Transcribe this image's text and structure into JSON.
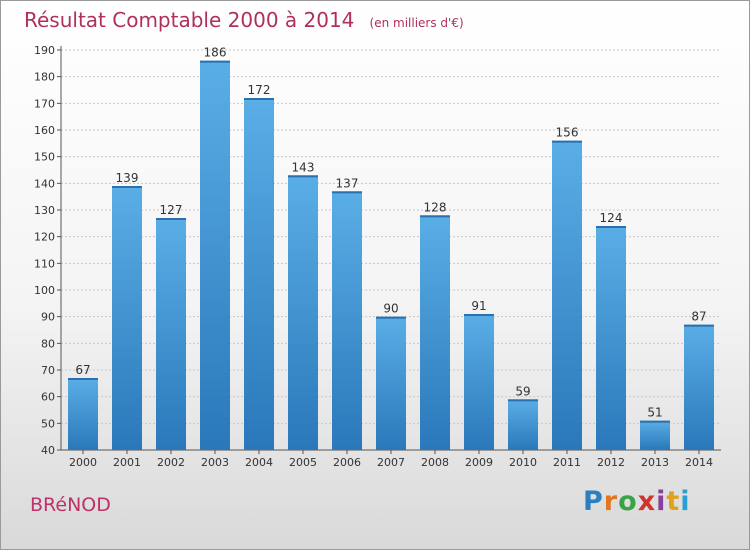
{
  "chart_data": {
    "type": "bar",
    "title": "Résultat Comptable 2000 à 2014",
    "subtitle": "(en milliers d'€)",
    "categories": [
      "2000",
      "2001",
      "2002",
      "2003",
      "2004",
      "2005",
      "2006",
      "2007",
      "2008",
      "2009",
      "2010",
      "2011",
      "2012",
      "2013",
      "2014"
    ],
    "values": [
      67,
      139,
      127,
      186,
      172,
      143,
      137,
      90,
      128,
      91,
      59,
      156,
      124,
      51,
      87
    ],
    "ylim": [
      40,
      190
    ],
    "yticks": [
      40,
      50,
      60,
      70,
      80,
      90,
      100,
      110,
      120,
      130,
      140,
      150,
      160,
      170,
      180,
      190
    ],
    "xlabel": "",
    "ylabel": "",
    "grid": true,
    "bar_color": "#4f9fd9",
    "bar_color_dark": "#2b79bb"
  },
  "footer": {
    "commune": "BRéNOD",
    "logo_letters": [
      "P",
      "r",
      "o",
      "x",
      "i",
      "t",
      "i"
    ],
    "logo_colors": [
      "#2a7fc0",
      "#e07820",
      "#3aa348",
      "#d0342c",
      "#8a3f9e",
      "#e0a020",
      "#2a9fd0"
    ]
  }
}
